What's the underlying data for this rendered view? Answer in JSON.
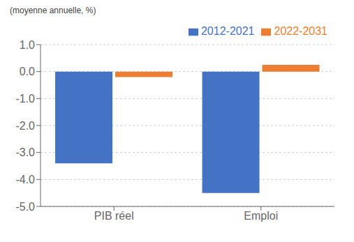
{
  "chart_data": {
    "type": "bar",
    "ylabel": "(moyenne annuelle, %)",
    "categories": [
      "PIB réel",
      "Emploi"
    ],
    "series": [
      {
        "name": "2012-2021",
        "color": "#4472C4",
        "values": [
          -3.4,
          -4.5
        ]
      },
      {
        "name": "2022-2031",
        "color": "#ED7D31",
        "values": [
          -0.2,
          0.25
        ]
      }
    ],
    "ylim": [
      -5.0,
      1.0
    ],
    "yticks": [
      {
        "value": -5.0,
        "label": "-5.0"
      },
      {
        "value": -4.0,
        "label": "-4.0"
      },
      {
        "value": -3.0,
        "label": "-3.0"
      },
      {
        "value": -2.0,
        "label": "-2.0"
      },
      {
        "value": -1.0,
        "label": "-1.0"
      },
      {
        "value": 0.0,
        "label": "0.0"
      },
      {
        "value": 1.0,
        "label": "1.0"
      }
    ],
    "grid": true,
    "legend": "top"
  }
}
